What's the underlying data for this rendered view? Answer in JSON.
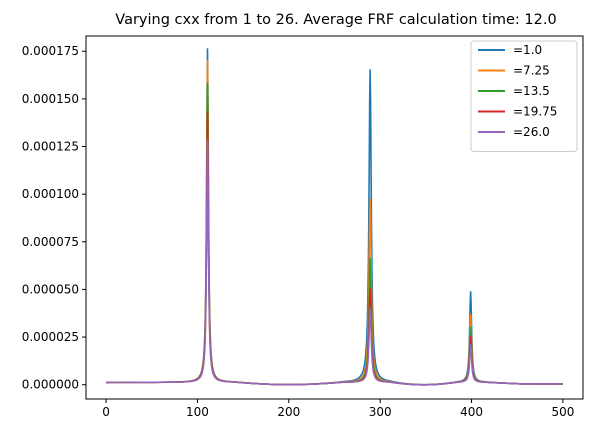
{
  "chart_data": {
    "type": "line",
    "title": "Varying cxx from 1 to 26. Average FRF calculation time: 12.0",
    "xlabel": "",
    "ylabel": "",
    "xlim": [
      -22,
      522
    ],
    "ylim": [
      -7.5e-06,
      0.000183
    ],
    "x_ticks": [
      0,
      100,
      200,
      300,
      400,
      500
    ],
    "x_tick_labels": [
      "0",
      "100",
      "200",
      "300",
      "400",
      "500"
    ],
    "y_ticks": [
      0,
      2.5e-05,
      5e-05,
      7.5e-05,
      0.0001,
      0.000125,
      0.00015,
      0.000175
    ],
    "y_tick_labels": [
      "0.000000",
      "0.000025",
      "0.000050",
      "0.000075",
      "0.000100",
      "0.000125",
      "0.000150",
      "0.000175"
    ],
    "grid": false,
    "legend_position": "top-right",
    "peaks": [
      111,
      289,
      399
    ],
    "series": [
      {
        "name": "=1.0",
        "color": "#1f77b4",
        "peak_values": [
          0.000175,
          0.000164,
          4.75e-05
        ]
      },
      {
        "name": "=7.25",
        "color": "#ff7f0e",
        "peak_values": [
          0.000169,
          9.6e-05,
          3.55e-05
        ]
      },
      {
        "name": "=13.5",
        "color": "#2ca02c",
        "peak_values": [
          0.000157,
          6.5e-05,
          2.9e-05
        ]
      },
      {
        "name": "=19.75",
        "color": "#d62728",
        "peak_values": [
          0.000142,
          4.9e-05,
          2.4e-05
        ]
      },
      {
        "name": "=26.0",
        "color": "#9467bd",
        "peak_values": [
          0.000127,
          3.9e-05,
          2e-05
        ]
      }
    ]
  }
}
